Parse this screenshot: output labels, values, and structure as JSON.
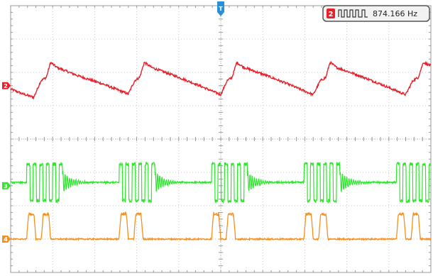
{
  "chart_data": {
    "type": "line",
    "title": "",
    "xlabel": "",
    "ylabel": "",
    "grid": true,
    "divisions": {
      "x": 10,
      "y": 8
    },
    "xlim": [
      0,
      10
    ],
    "ylim": [
      -4,
      4
    ],
    "trigger_marker": {
      "label": "T",
      "x_div": 5.0,
      "color": "#2a8fd8"
    },
    "measurement": {
      "channel_label": "2",
      "value_text": "874.166 Hz",
      "channel_color": "#e8202a"
    },
    "series": [
      {
        "channel": "2",
        "color": "#e8202a",
        "marker_y_div": 1.6,
        "points": [
          [
            0.0,
            1.5
          ],
          [
            0.3,
            1.35
          ],
          [
            0.55,
            1.25
          ],
          [
            0.72,
            1.75
          ],
          [
            0.85,
            1.85
          ],
          [
            0.95,
            2.3
          ],
          [
            1.1,
            2.15
          ],
          [
            1.6,
            1.9
          ],
          [
            2.2,
            1.65
          ],
          [
            2.8,
            1.35
          ],
          [
            2.95,
            1.75
          ],
          [
            3.07,
            1.85
          ],
          [
            3.18,
            2.3
          ],
          [
            3.35,
            2.15
          ],
          [
            3.9,
            1.9
          ],
          [
            4.4,
            1.65
          ],
          [
            5.0,
            1.33
          ],
          [
            5.15,
            1.75
          ],
          [
            5.27,
            1.85
          ],
          [
            5.38,
            2.3
          ],
          [
            5.55,
            2.15
          ],
          [
            6.1,
            1.9
          ],
          [
            6.6,
            1.65
          ],
          [
            7.2,
            1.33
          ],
          [
            7.37,
            1.75
          ],
          [
            7.5,
            1.85
          ],
          [
            7.6,
            2.3
          ],
          [
            7.75,
            2.15
          ],
          [
            8.3,
            1.9
          ],
          [
            8.8,
            1.65
          ],
          [
            9.4,
            1.33
          ],
          [
            9.57,
            1.75
          ],
          [
            9.7,
            1.85
          ],
          [
            9.82,
            2.3
          ],
          [
            10.0,
            2.2
          ]
        ]
      },
      {
        "channel": "3",
        "color": "#2ee62e",
        "marker_y_div": -1.4,
        "baseline_div": -1.3,
        "high_div": -0.75,
        "low_div": -1.85,
        "burst_starts_div": [
          0.38,
          2.58,
          4.78,
          6.98,
          9.18
        ],
        "burst_width_div": 0.85
      },
      {
        "channel": "4",
        "color": "#f5901e",
        "marker_y_div": -3.0,
        "baseline_div": -3.0,
        "peak_div": -2.25,
        "pulse_starts_div": [
          0.38,
          2.58,
          4.78,
          6.98,
          9.18
        ],
        "pulse_pair_offsets_div": [
          0.0,
          0.35
        ],
        "pulse_width_div": 0.22
      }
    ]
  }
}
